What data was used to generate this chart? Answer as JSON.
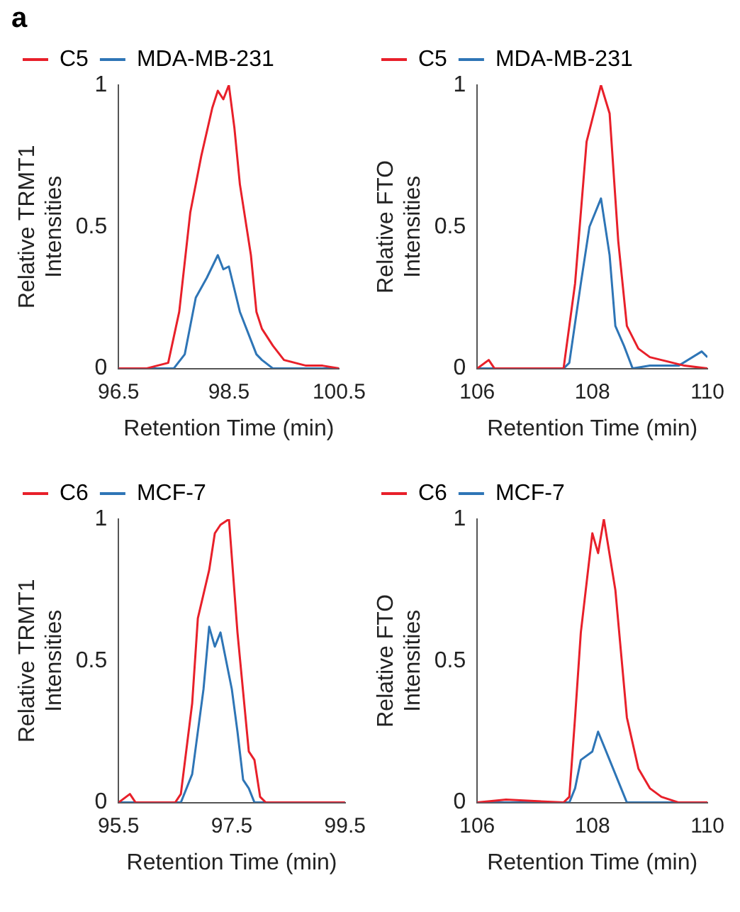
{
  "chart_data": [
    {
      "type": "line",
      "annotations": [
        "a"
      ],
      "xlabel": "Retention Time (min)",
      "ylabel": "Relative TRMT1 Intensities",
      "xlim": [
        96.5,
        100.5
      ],
      "xticks": [
        96.5,
        98.5,
        100.5
      ],
      "ylim": [
        0,
        1
      ],
      "yticks": [
        0,
        0.5,
        1
      ],
      "legend": "top",
      "marker": "none",
      "series": [
        {
          "name": "C5",
          "color": "#e8202a",
          "x": [
            96.5,
            97.0,
            97.2,
            97.4,
            97.6,
            97.8,
            98.0,
            98.2,
            98.3,
            98.4,
            98.5,
            98.6,
            98.7,
            98.9,
            99.0,
            99.1,
            99.3,
            99.5,
            99.7,
            99.9,
            100.2,
            100.5
          ],
          "values": [
            0,
            0,
            0.01,
            0.02,
            0.2,
            0.55,
            0.75,
            0.92,
            0.98,
            0.95,
            1.0,
            0.85,
            0.65,
            0.4,
            0.2,
            0.14,
            0.08,
            0.03,
            0.02,
            0.01,
            0.01,
            0
          ]
        },
        {
          "name": "MDA-MB-231",
          "color": "#2e75b6",
          "x": [
            96.5,
            97.5,
            97.7,
            97.9,
            98.1,
            98.3,
            98.4,
            98.5,
            98.7,
            98.9,
            99.0,
            99.1,
            99.3,
            100.5
          ],
          "values": [
            0,
            0,
            0.05,
            0.25,
            0.32,
            0.4,
            0.35,
            0.36,
            0.2,
            0.1,
            0.05,
            0.03,
            0,
            0
          ]
        }
      ]
    },
    {
      "type": "line",
      "xlabel": "Retention Time (min)",
      "ylabel": "Relative FTO Intensities",
      "xlim": [
        106,
        110
      ],
      "xticks": [
        106,
        108,
        110
      ],
      "ylim": [
        0,
        1
      ],
      "yticks": [
        0,
        0.5,
        1
      ],
      "legend": "top",
      "marker": "none",
      "series": [
        {
          "name": "C5",
          "color": "#e8202a",
          "x": [
            106,
            106.2,
            106.3,
            107.5,
            107.7,
            107.9,
            108.0,
            108.15,
            108.3,
            108.45,
            108.6,
            108.8,
            109.0,
            109.2,
            109.4,
            109.6,
            110
          ],
          "values": [
            0,
            0.03,
            0,
            0,
            0.3,
            0.8,
            0.88,
            1.0,
            0.9,
            0.45,
            0.15,
            0.07,
            0.04,
            0.03,
            0.02,
            0.01,
            0
          ]
        },
        {
          "name": "MDA-MB-231",
          "color": "#2e75b6",
          "x": [
            106,
            107.5,
            107.6,
            107.8,
            107.95,
            108.15,
            108.3,
            108.4,
            108.55,
            108.7,
            109.0,
            109.5,
            109.9,
            110
          ],
          "values": [
            0,
            0,
            0.02,
            0.3,
            0.5,
            0.6,
            0.4,
            0.15,
            0.08,
            0,
            0.01,
            0.01,
            0.06,
            0.04
          ]
        }
      ]
    },
    {
      "type": "line",
      "xlabel": "Retention Time (min)",
      "ylabel": "Relative TRMT1 Intensities",
      "xlim": [
        95.5,
        99.5
      ],
      "xticks": [
        95.5,
        97.5,
        99.5
      ],
      "ylim": [
        0,
        1
      ],
      "yticks": [
        0,
        0.5,
        1
      ],
      "legend": "top",
      "marker": "none",
      "series": [
        {
          "name": "C6",
          "color": "#e8202a",
          "x": [
            95.5,
            95.7,
            95.8,
            96.5,
            96.6,
            96.8,
            96.9,
            97.1,
            97.2,
            97.3,
            97.45,
            97.6,
            97.8,
            97.9,
            98.0,
            98.1,
            99.5
          ],
          "values": [
            0,
            0.03,
            0,
            0,
            0.03,
            0.35,
            0.65,
            0.82,
            0.95,
            0.98,
            1.0,
            0.6,
            0.18,
            0.15,
            0.02,
            0,
            0
          ]
        },
        {
          "name": "MCF-7",
          "color": "#2e75b6",
          "x": [
            95.5,
            96.6,
            96.8,
            97.0,
            97.1,
            97.2,
            97.3,
            97.5,
            97.6,
            97.7,
            97.8,
            97.9,
            99.5
          ],
          "values": [
            0,
            0,
            0.1,
            0.4,
            0.62,
            0.55,
            0.6,
            0.4,
            0.25,
            0.08,
            0.05,
            0,
            0
          ]
        }
      ]
    },
    {
      "type": "line",
      "xlabel": "Retention Time (min)",
      "ylabel": "Relative FTO Intensities",
      "xlim": [
        106,
        110
      ],
      "xticks": [
        106,
        108,
        110
      ],
      "ylim": [
        0,
        1
      ],
      "yticks": [
        0,
        0.5,
        1
      ],
      "legend": "top",
      "marker": "none",
      "series": [
        {
          "name": "C6",
          "color": "#e8202a",
          "x": [
            106,
            106.5,
            107.5,
            107.6,
            107.7,
            107.8,
            108.0,
            108.1,
            108.2,
            108.4,
            108.6,
            108.8,
            109.0,
            109.2,
            109.5,
            110
          ],
          "values": [
            0,
            0.01,
            0,
            0.02,
            0.3,
            0.6,
            0.95,
            0.88,
            1.0,
            0.75,
            0.3,
            0.12,
            0.05,
            0.02,
            0,
            0
          ]
        },
        {
          "name": "MCF-7",
          "color": "#2e75b6",
          "x": [
            106,
            107.6,
            107.7,
            107.8,
            108.0,
            108.1,
            108.3,
            108.5,
            108.6,
            110
          ],
          "values": [
            0,
            0,
            0.05,
            0.15,
            0.18,
            0.25,
            0.15,
            0.05,
            0,
            0
          ]
        }
      ]
    }
  ]
}
